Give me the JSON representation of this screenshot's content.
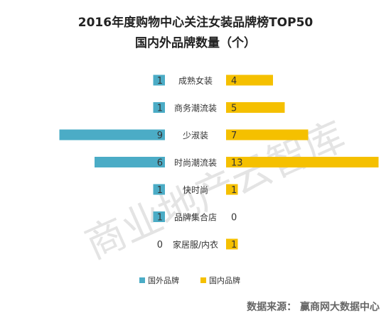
{
  "chart_data": {
    "type": "bar",
    "title": "2016年度购物中心关注女装品牌榜TOP50",
    "subtitle": "国内外品牌数量（个）",
    "categories": [
      "成熟女装",
      "商务潮流装",
      "少淑装",
      "时尚潮流装",
      "快时尚",
      "品牌集合店",
      "家居服/内衣"
    ],
    "series": [
      {
        "name": "国外品牌",
        "values": [
          1,
          1,
          9,
          6,
          1,
          1,
          0
        ],
        "color": "#4bacc6",
        "side": "left"
      },
      {
        "name": "国内品牌",
        "values": [
          4,
          5,
          7,
          13,
          1,
          0,
          1
        ],
        "color": "#f5c000",
        "side": "right"
      }
    ],
    "legend_position": "bottom",
    "grid": false
  },
  "watermark": "商业地产云智库",
  "source": "数据来源：  赢商网大数据中心"
}
